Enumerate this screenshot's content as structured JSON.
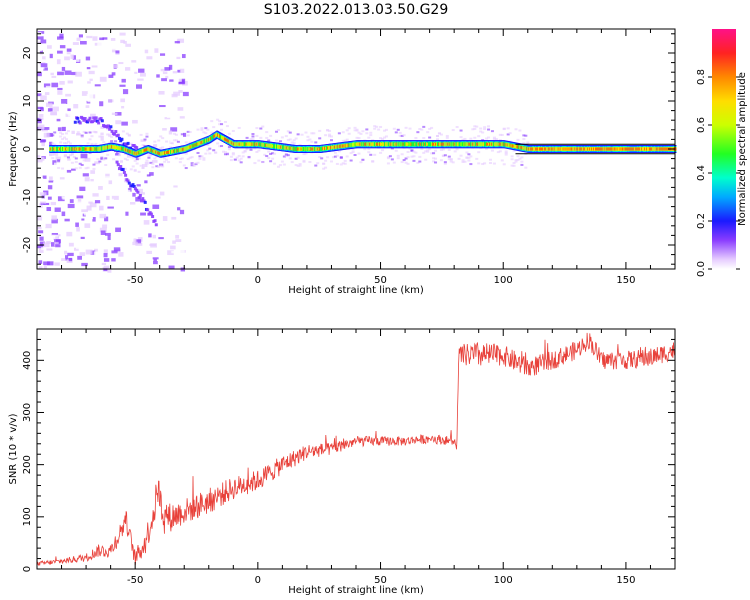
{
  "title": "S103.2022.013.03.50.G29",
  "chart_data": [
    {
      "type": "heatmap",
      "xlabel": "Height of straight line (km)",
      "ylabel": "Frequency (Hz)",
      "xlim": [
        -90,
        170
      ],
      "ylim": [
        -25,
        25
      ],
      "xticks": [
        -50,
        0,
        50,
        100,
        150
      ],
      "yticks": [
        -20,
        -10,
        0,
        10,
        20
      ],
      "colorbar": {
        "label": "Normalized spectral amplitude",
        "range": [
          0,
          1
        ],
        "ticks": [
          "0.0",
          "0.2",
          "0.4",
          "0.6",
          "0.8"
        ]
      },
      "ridge": {
        "x": [
          -85,
          -75,
          -65,
          -60,
          -55,
          -50,
          -45,
          -40,
          -30,
          -25,
          -20,
          -17,
          -10,
          0,
          15,
          25,
          40,
          60,
          80,
          100,
          110,
          170
        ],
        "y": [
          0,
          0,
          0,
          0.5,
          0,
          -1,
          0,
          -1,
          0,
          1,
          2,
          3,
          1,
          1,
          0,
          0,
          1,
          1,
          1,
          1,
          0,
          0
        ]
      },
      "side_branches": [
        {
          "x": [
            -75,
            -65,
            -60,
            -55,
            -50
          ],
          "y": [
            6,
            6,
            4,
            1,
            0
          ]
        },
        {
          "x": [
            -58,
            -54,
            -50,
            -46,
            -42
          ],
          "y": [
            -3,
            -6,
            -9,
            -12,
            -16
          ]
        }
      ],
      "grid": false
    },
    {
      "type": "line",
      "xlabel": "Height of straight line (km)",
      "ylabel": "SNR (10 * v/v)",
      "xlim": [
        -90,
        170
      ],
      "ylim": [
        0,
        460
      ],
      "xticks": [
        -50,
        0,
        50,
        100,
        150
      ],
      "yticks": [
        0,
        100,
        200,
        300,
        400
      ],
      "series": [
        {
          "color": "#e8413a",
          "x": [
            -90,
            -80,
            -70,
            -65,
            -60,
            -55,
            -54,
            -50,
            -46,
            -42,
            -41,
            -38,
            -30,
            -20,
            -10,
            0,
            10,
            20,
            30,
            40,
            50,
            60,
            70,
            80,
            81,
            82,
            90,
            100,
            110,
            120,
            130,
            135,
            140,
            150,
            160,
            170
          ],
          "y": [
            10,
            15,
            22,
            35,
            35,
            80,
            100,
            20,
            50,
            115,
            160,
            95,
            110,
            130,
            155,
            170,
            200,
            225,
            230,
            245,
            245,
            245,
            250,
            245,
            230,
            410,
            410,
            410,
            385,
            400,
            420,
            440,
            400,
            400,
            405,
            420
          ],
          "noise_amplitude": [
            4,
            5,
            8,
            12,
            15,
            20,
            20,
            15,
            25,
            30,
            30,
            30,
            25,
            25,
            22,
            20,
            18,
            15,
            12,
            10,
            9,
            9,
            9,
            9,
            9,
            20,
            25,
            20,
            20,
            18,
            18,
            18,
            18,
            18,
            18,
            18
          ]
        }
      ],
      "grid": false
    }
  ]
}
